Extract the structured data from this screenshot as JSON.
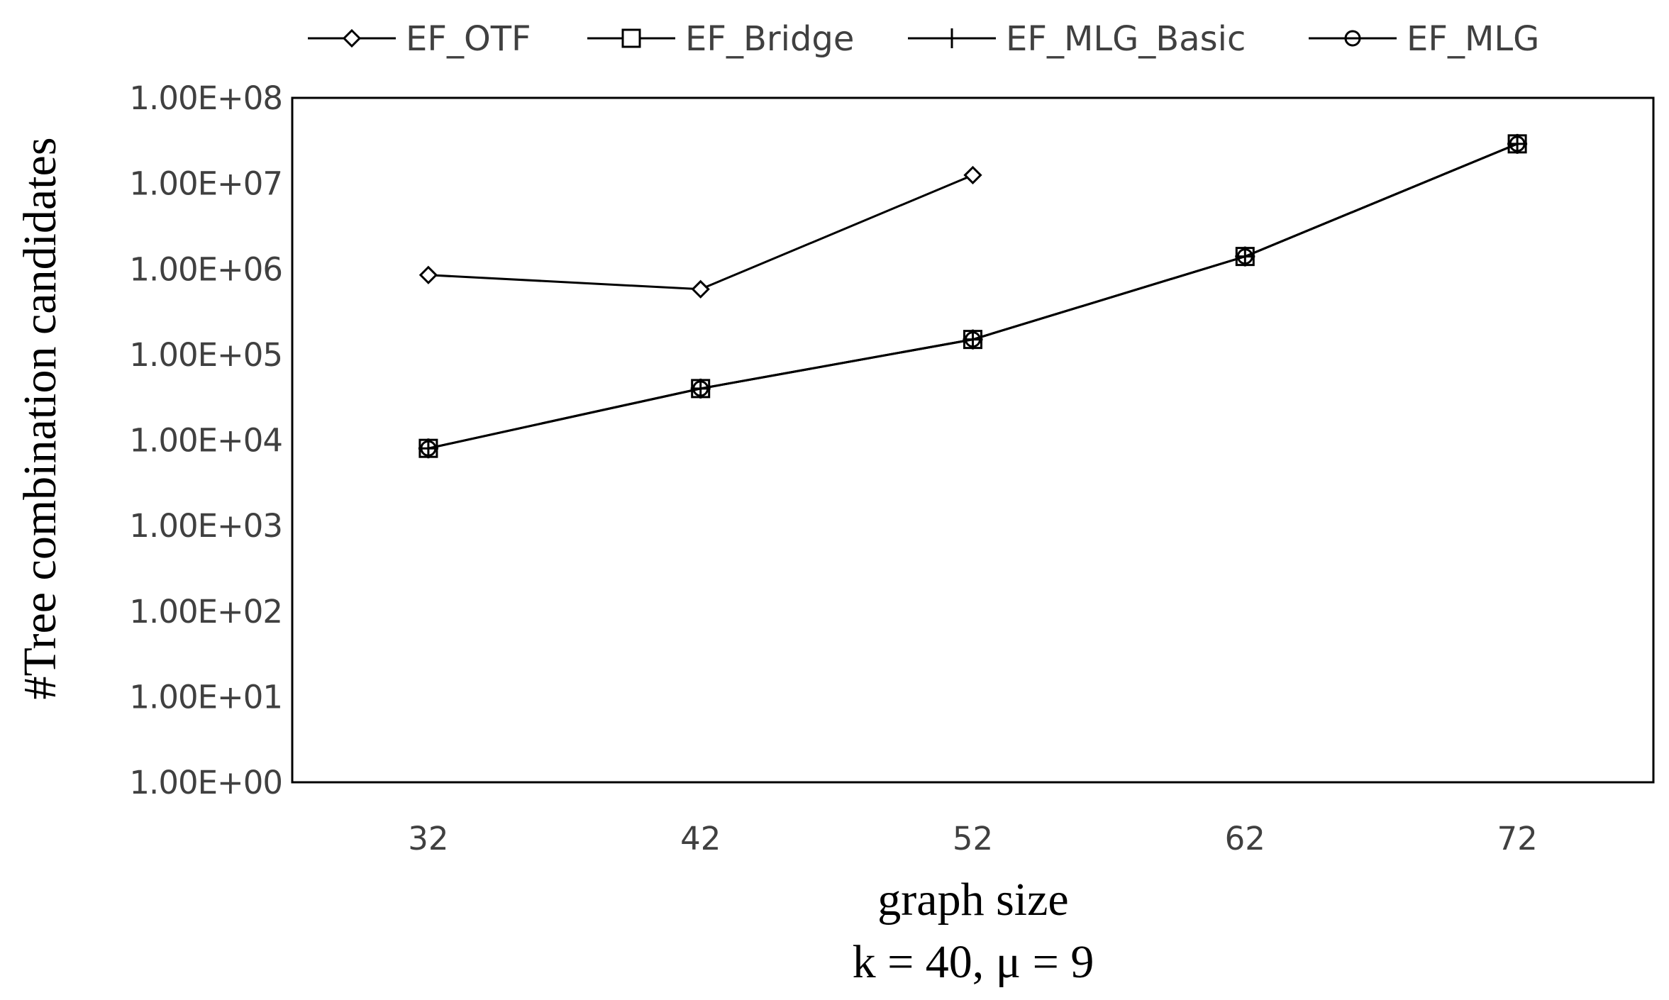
{
  "chart_data": {
    "type": "line",
    "title": "",
    "xlabel": "graph size",
    "subtitle": "k = 40,  μ = 9",
    "ylabel": "#Tree combination  candidates",
    "yscale": "log",
    "ylim": [
      1,
      100000000
    ],
    "yticks": [
      {
        "value": 1,
        "label": "1.00E+00"
      },
      {
        "value": 10,
        "label": "1.00E+01"
      },
      {
        "value": 100,
        "label": "1.00E+02"
      },
      {
        "value": 1000,
        "label": "1.00E+03"
      },
      {
        "value": 10000,
        "label": "1.00E+04"
      },
      {
        "value": 100000,
        "label": "1.00E+05"
      },
      {
        "value": 1000000,
        "label": "1.00E+06"
      },
      {
        "value": 10000000,
        "label": "1.00E+07"
      },
      {
        "value": 100000000,
        "label": "1.00E+08"
      }
    ],
    "categories": [
      "32",
      "42",
      "52",
      "62",
      "72"
    ],
    "legend_position": "top",
    "series": [
      {
        "name": "EF_OTF",
        "marker": "diamond",
        "values": [
          850000,
          580000,
          12500000,
          null,
          null
        ]
      },
      {
        "name": "EF_Bridge",
        "marker": "square",
        "values": [
          8000,
          40000,
          150000,
          1400000,
          29000000
        ]
      },
      {
        "name": "EF_MLG_Basic",
        "marker": "plus",
        "values": [
          8000,
          40000,
          150000,
          1400000,
          29000000
        ]
      },
      {
        "name": "EF_MLG",
        "marker": "circle",
        "values": [
          8000,
          40000,
          150000,
          1400000,
          29000000
        ]
      }
    ],
    "colors": {
      "line": "#000000",
      "text": "#404040",
      "frame": "#000000"
    }
  }
}
